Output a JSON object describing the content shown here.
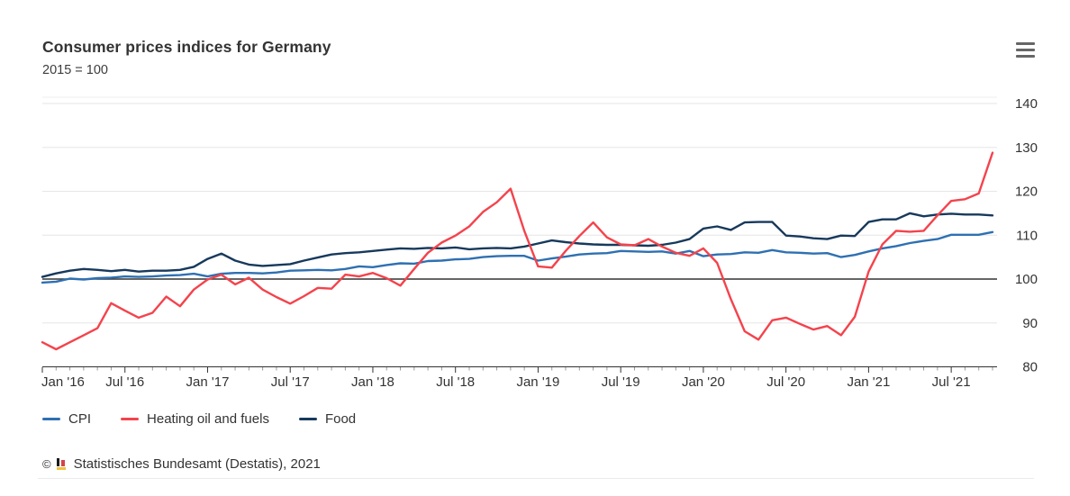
{
  "header": {
    "title": "Consumer prices indices for Germany",
    "subtitle": "2015 = 100",
    "menu_icon": "hamburger-icon"
  },
  "legend": {
    "position": "bottom-left"
  },
  "credits": {
    "copyright": "©",
    "logo": "destatis-logo",
    "source": "Statistisches Bundesamt (Destatis), 2021"
  },
  "chart_data": {
    "type": "line",
    "title": "Consumer prices indices for Germany",
    "subtitle": "2015 = 100",
    "xlabel": "",
    "ylabel": "",
    "ylim": [
      80,
      140
    ],
    "y_ticks": [
      80,
      90,
      100,
      110,
      120,
      130,
      140
    ],
    "y_tick_side": "right",
    "baseline_value": 100,
    "grid": true,
    "x_tick_labels": [
      "Jan '16",
      "Jul '16",
      "Jan '17",
      "Jul '17",
      "Jan '18",
      "Jul '18",
      "Jan '19",
      "Jul '19",
      "Jan '20",
      "Jul '20",
      "Jan '21",
      "Jul '21"
    ],
    "months": [
      "2016-01",
      "2016-02",
      "2016-03",
      "2016-04",
      "2016-05",
      "2016-06",
      "2016-07",
      "2016-08",
      "2016-09",
      "2016-10",
      "2016-11",
      "2016-12",
      "2017-01",
      "2017-02",
      "2017-03",
      "2017-04",
      "2017-05",
      "2017-06",
      "2017-07",
      "2017-08",
      "2017-09",
      "2017-10",
      "2017-11",
      "2017-12",
      "2018-01",
      "2018-02",
      "2018-03",
      "2018-04",
      "2018-05",
      "2018-06",
      "2018-07",
      "2018-08",
      "2018-09",
      "2018-10",
      "2018-11",
      "2018-12",
      "2019-01",
      "2019-02",
      "2019-03",
      "2019-04",
      "2019-05",
      "2019-06",
      "2019-07",
      "2019-08",
      "2019-09",
      "2019-10",
      "2019-11",
      "2019-12",
      "2020-01",
      "2020-02",
      "2020-03",
      "2020-04",
      "2020-05",
      "2020-06",
      "2020-07",
      "2020-08",
      "2020-09",
      "2020-10",
      "2020-11",
      "2020-12",
      "2021-01",
      "2021-02",
      "2021-03",
      "2021-04",
      "2021-05",
      "2021-06",
      "2021-07",
      "2021-08",
      "2021-09",
      "2021-10"
    ],
    "series": [
      {
        "name": "CPI",
        "color": "#2e70b2",
        "values": [
          99.2,
          99.4,
          100.1,
          99.9,
          100.2,
          100.3,
          100.6,
          100.5,
          100.6,
          100.8,
          100.9,
          101.2,
          100.6,
          101.2,
          101.4,
          101.4,
          101.3,
          101.5,
          101.9,
          102.0,
          102.1,
          102.0,
          102.3,
          102.9,
          102.7,
          103.2,
          103.6,
          103.5,
          104.1,
          104.2,
          104.5,
          104.6,
          105.0,
          105.2,
          105.3,
          105.3,
          104.2,
          104.7,
          105.1,
          105.6,
          105.8,
          105.9,
          106.4,
          106.3,
          106.2,
          106.3,
          105.8,
          106.4,
          105.2,
          105.6,
          105.7,
          106.1,
          106.0,
          106.6,
          106.1,
          106.0,
          105.8,
          105.9,
          105.0,
          105.5,
          106.3,
          107.0,
          107.5,
          108.2,
          108.7,
          109.1,
          110.1,
          110.1,
          110.1,
          110.7
        ]
      },
      {
        "name": "Heating oil and fuels",
        "color": "#f4434c",
        "values": [
          85.6,
          84.0,
          85.6,
          87.2,
          88.8,
          94.5,
          92.8,
          91.2,
          92.3,
          96.0,
          93.8,
          97.6,
          99.9,
          101.0,
          98.8,
          100.3,
          97.6,
          95.9,
          94.4,
          96.1,
          98.0,
          97.8,
          101.0,
          100.6,
          101.4,
          100.2,
          98.5,
          102.3,
          106.0,
          108.3,
          109.9,
          112.0,
          115.3,
          117.5,
          120.6,
          111.0,
          102.9,
          102.6,
          106.4,
          109.8,
          112.9,
          109.5,
          107.9,
          107.7,
          109.1,
          107.4,
          106.0,
          105.3,
          107.0,
          103.7,
          95.4,
          88.1,
          86.2,
          90.6,
          91.2,
          89.8,
          88.5,
          89.3,
          87.2,
          91.4,
          101.7,
          107.9,
          111.0,
          110.8,
          111.0,
          114.5,
          117.8,
          118.2,
          119.5,
          128.8
        ]
      },
      {
        "name": "Food",
        "color": "#17395c",
        "values": [
          100.5,
          101.3,
          101.9,
          102.3,
          102.1,
          101.8,
          102.1,
          101.7,
          101.9,
          101.9,
          102.1,
          102.8,
          104.6,
          105.8,
          104.2,
          103.3,
          103.0,
          103.2,
          103.4,
          104.2,
          104.9,
          105.6,
          105.9,
          106.1,
          106.4,
          106.7,
          107.0,
          106.9,
          107.1,
          107.0,
          107.2,
          106.8,
          107.0,
          107.1,
          107.0,
          107.4,
          108.1,
          108.8,
          108.4,
          108.1,
          107.9,
          107.8,
          107.8,
          107.7,
          107.6,
          107.8,
          108.3,
          109.1,
          111.5,
          112.0,
          111.2,
          112.9,
          113.0,
          113.0,
          109.9,
          109.7,
          109.3,
          109.1,
          109.9,
          109.8,
          113.0,
          113.6,
          113.6,
          115.0,
          114.3,
          114.7,
          114.9,
          114.7,
          114.7,
          114.5
        ]
      }
    ],
    "colors": {
      "grid": "#e6e6e6",
      "baseline": "#333333",
      "axis": "#333333",
      "tick_minor": "#999999",
      "label_text": "#333333"
    }
  }
}
